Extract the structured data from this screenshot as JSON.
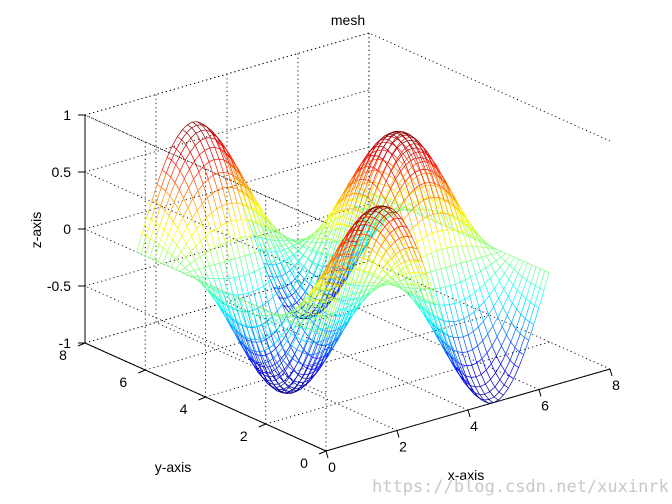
{
  "chart_data": {
    "type": "mesh",
    "title": "mesh",
    "xlabel": "x-axis",
    "ylabel": "y-axis",
    "zlabel": "z-axis",
    "xlim": [
      0,
      8
    ],
    "ylim": [
      0,
      8
    ],
    "zlim": [
      -1,
      1
    ],
    "x_ticks": [
      "0",
      "2",
      "4",
      "6",
      "8"
    ],
    "y_ticks": [
      "0",
      "2",
      "4",
      "6",
      "8"
    ],
    "z_ticks": [
      "-1",
      "-0.5",
      "0",
      "0.5",
      "1"
    ],
    "grid": true,
    "colormap": "jet",
    "surface": {
      "x_range": [
        0,
        6.283
      ],
      "y_range": [
        0,
        6.283
      ],
      "x_samples": 45,
      "y_samples": 45,
      "z": "sin(x) * cos(y)"
    }
  },
  "watermark": "https://blog.csdn.net/xuxinrk"
}
